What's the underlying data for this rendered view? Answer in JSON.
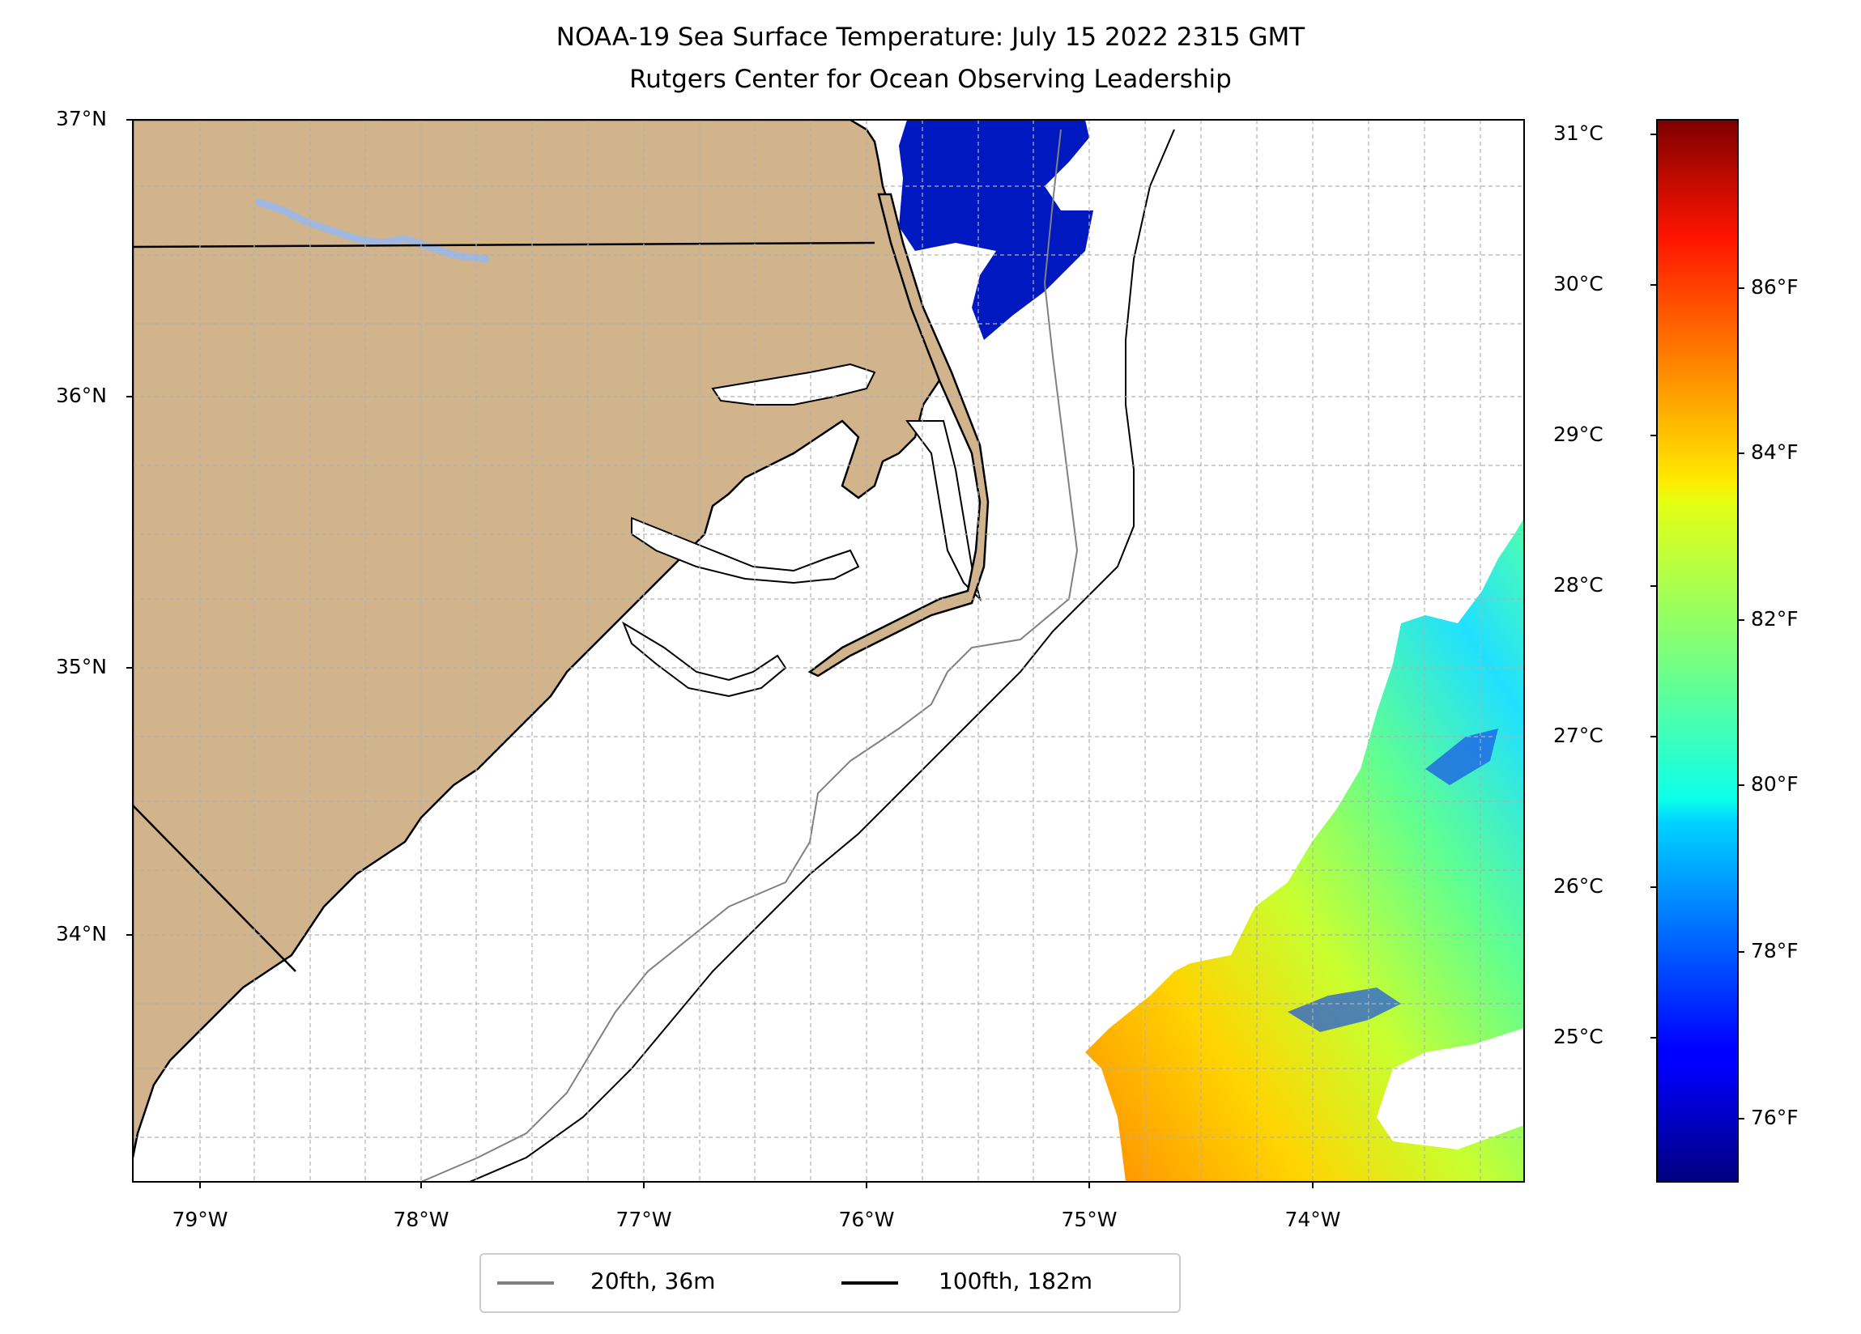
{
  "title": "NOAA-19 Sea Surface Temperature: July 15 2022 2315 GMT",
  "subtitle": "Rutgers Center for Ocean Observing Leadership",
  "map": {
    "lat_labels": [
      "37°N",
      "36°N",
      "35°N",
      "34°N"
    ],
    "lon_labels": [
      "79°W",
      "78°W",
      "77°W",
      "76°W",
      "75°W",
      "74°W"
    ],
    "land_color": "#d2b48c",
    "lake_color": "#a0b8e0",
    "grid": true
  },
  "colorbar": {
    "celsius_labels": [
      "31°C",
      "30°C",
      "29°C",
      "28°C",
      "27°C",
      "26°C",
      "25°C"
    ],
    "fahrenheit_labels": [
      "86°F",
      "84°F",
      "82°F",
      "80°F",
      "78°F",
      "76°F"
    ],
    "colormap": "jet"
  },
  "legend": {
    "items": [
      {
        "label": "20fth, 36m",
        "color": "#808080"
      },
      {
        "label": "100fth, 182m",
        "color": "#000000"
      }
    ]
  }
}
